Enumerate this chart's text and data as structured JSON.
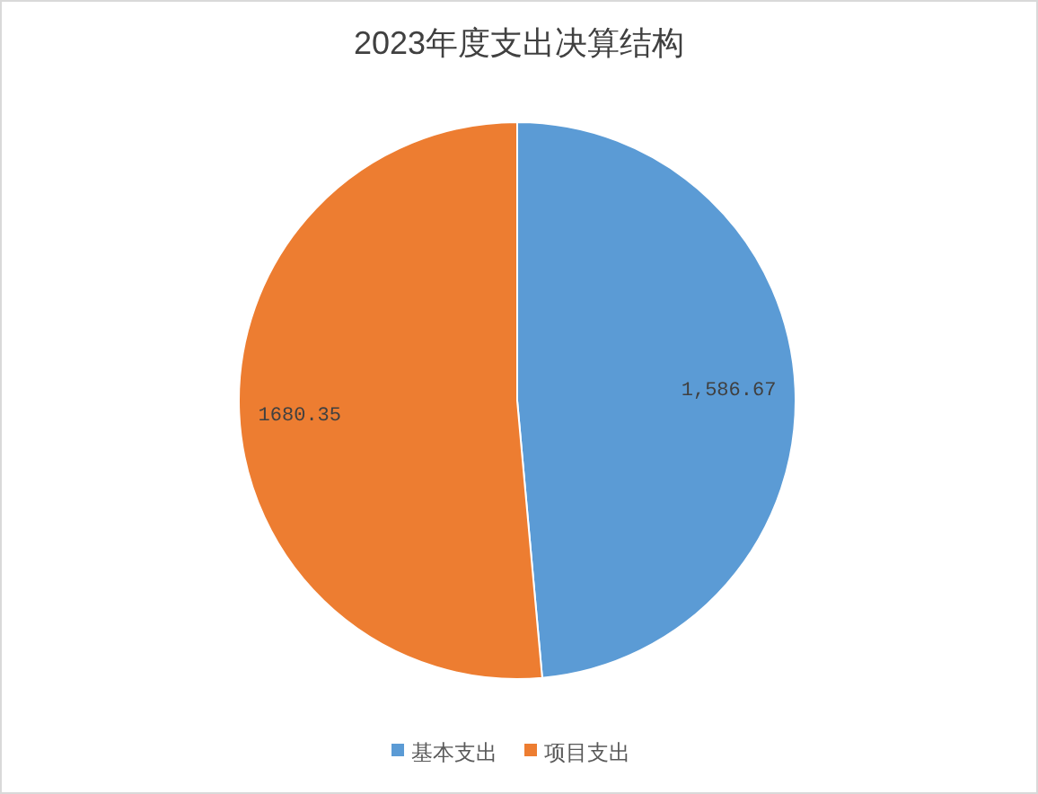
{
  "chart_data": {
    "type": "pie",
    "title": "2023年度支出决算结构",
    "categories": [
      "基本支出",
      "项目支出"
    ],
    "values": [
      1586.67,
      1680.35
    ],
    "value_labels": [
      "1,586.67",
      "1680.35"
    ],
    "colors": [
      "#5b9bd5",
      "#ed7d31"
    ],
    "legend": "bottom"
  }
}
